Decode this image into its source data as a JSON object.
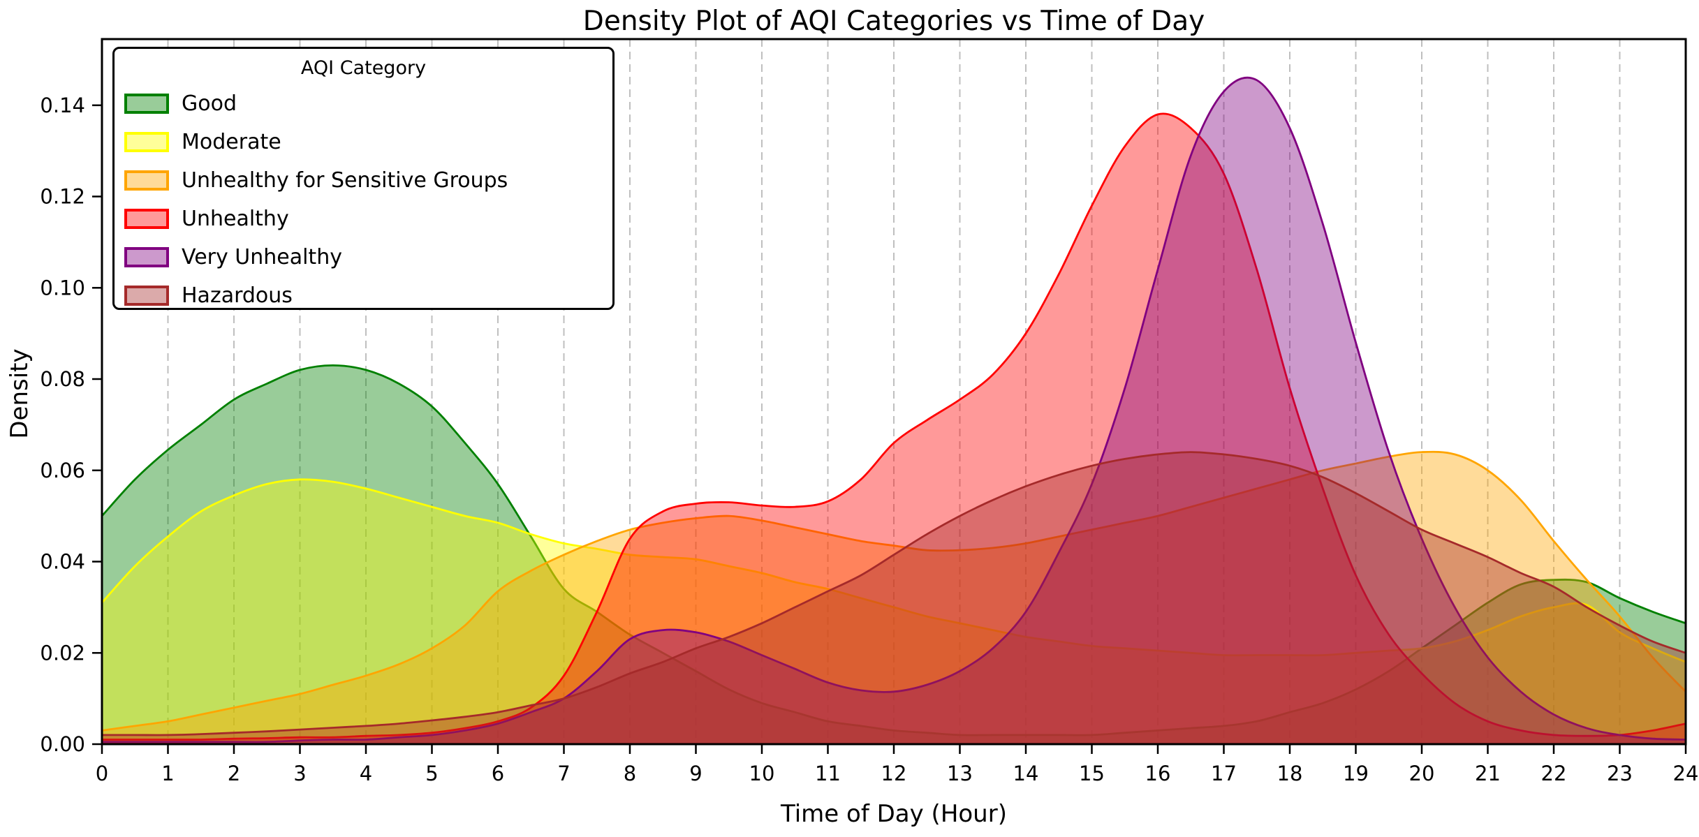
{
  "chart_data": {
    "type": "area",
    "title": "Density Plot of AQI Categories vs Time of Day",
    "xlabel": "Time of Day (Hour)",
    "ylabel": "Density",
    "legend_title": "AQI Category",
    "legend_position": "upper left",
    "grid": "vertical dashed gridlines at every hour, no horizontal gridlines",
    "xlim": [
      0,
      24
    ],
    "ylim": [
      0,
      0.1545
    ],
    "x_ticks": [
      0,
      1,
      2,
      3,
      4,
      5,
      6,
      7,
      8,
      9,
      10,
      11,
      12,
      13,
      14,
      15,
      16,
      17,
      18,
      19,
      20,
      21,
      22,
      23,
      24
    ],
    "y_ticks": [
      0.0,
      0.02,
      0.04,
      0.06,
      0.08,
      0.1,
      0.12,
      0.14
    ],
    "y_tick_labels": [
      "0.00",
      "0.02",
      "0.04",
      "0.06",
      "0.08",
      "0.10",
      "0.12",
      "0.14"
    ],
    "x_start": 0,
    "x_step": 0.5,
    "series": [
      {
        "name": "Good",
        "color": "#008000",
        "fill_opacity": 0.4,
        "values": [
          0.05,
          0.058,
          0.0645,
          0.07,
          0.0755,
          0.079,
          0.082,
          0.083,
          0.082,
          0.079,
          0.074,
          0.066,
          0.057,
          0.0455,
          0.034,
          0.029,
          0.024,
          0.02,
          0.016,
          0.012,
          0.009,
          0.007,
          0.005,
          0.004,
          0.003,
          0.0025,
          0.002,
          0.002,
          0.002,
          0.002,
          0.002,
          0.0025,
          0.003,
          0.0035,
          0.004,
          0.005,
          0.007,
          0.009,
          0.012,
          0.016,
          0.021,
          0.026,
          0.031,
          0.035,
          0.036,
          0.0355,
          0.032,
          0.029,
          0.0265
        ]
      },
      {
        "name": "Moderate",
        "color": "#ffff00",
        "fill_opacity": 0.4,
        "values": [
          0.031,
          0.039,
          0.0455,
          0.051,
          0.0545,
          0.057,
          0.058,
          0.0575,
          0.056,
          0.054,
          0.052,
          0.05,
          0.0485,
          0.046,
          0.044,
          0.0428,
          0.0415,
          0.041,
          0.0405,
          0.039,
          0.0375,
          0.0355,
          0.034,
          0.032,
          0.03,
          0.028,
          0.0265,
          0.025,
          0.0235,
          0.0225,
          0.0215,
          0.021,
          0.0205,
          0.02,
          0.0195,
          0.0195,
          0.0195,
          0.0195,
          0.02,
          0.0205,
          0.021,
          0.0225,
          0.025,
          0.028,
          0.03,
          0.0305,
          0.0245,
          0.021,
          0.018
        ]
      },
      {
        "name": "Unhealthy for Sensitive Groups",
        "color": "#ffa500",
        "fill_opacity": 0.4,
        "values": [
          0.003,
          0.004,
          0.005,
          0.0065,
          0.008,
          0.0095,
          0.011,
          0.013,
          0.015,
          0.0175,
          0.021,
          0.026,
          0.0335,
          0.038,
          0.0415,
          0.0445,
          0.047,
          0.0485,
          0.0495,
          0.05,
          0.049,
          0.0475,
          0.046,
          0.0445,
          0.0435,
          0.0425,
          0.0425,
          0.043,
          0.044,
          0.0455,
          0.047,
          0.0485,
          0.05,
          0.052,
          0.054,
          0.056,
          0.058,
          0.06,
          0.0615,
          0.063,
          0.064,
          0.0635,
          0.06,
          0.0535,
          0.0445,
          0.036,
          0.028,
          0.019,
          0.0115
        ]
      },
      {
        "name": "Unhealthy",
        "color": "#ff0000",
        "fill_opacity": 0.4,
        "values": [
          0.001,
          0.001,
          0.001,
          0.001,
          0.0012,
          0.0013,
          0.0015,
          0.0015,
          0.0018,
          0.002,
          0.0025,
          0.0035,
          0.005,
          0.008,
          0.015,
          0.029,
          0.045,
          0.051,
          0.0527,
          0.053,
          0.0523,
          0.052,
          0.0532,
          0.058,
          0.066,
          0.071,
          0.0755,
          0.081,
          0.09,
          0.103,
          0.118,
          0.131,
          0.138,
          0.135,
          0.125,
          0.104,
          0.078,
          0.056,
          0.037,
          0.024,
          0.0155,
          0.009,
          0.005,
          0.003,
          0.002,
          0.0018,
          0.002,
          0.003,
          0.0045
        ]
      },
      {
        "name": "Very Unhealthy",
        "color": "#800080",
        "fill_opacity": 0.4,
        "values": [
          0.0005,
          0.0005,
          0.0005,
          0.0005,
          0.0005,
          0.0005,
          0.0008,
          0.001,
          0.001,
          0.0015,
          0.002,
          0.003,
          0.0045,
          0.007,
          0.01,
          0.016,
          0.023,
          0.025,
          0.0245,
          0.0225,
          0.0195,
          0.0165,
          0.0135,
          0.0118,
          0.0115,
          0.013,
          0.016,
          0.021,
          0.029,
          0.042,
          0.057,
          0.078,
          0.104,
          0.129,
          0.143,
          0.1455,
          0.135,
          0.114,
          0.088,
          0.064,
          0.045,
          0.03,
          0.019,
          0.0115,
          0.0065,
          0.0035,
          0.002,
          0.0012,
          0.001
        ]
      },
      {
        "name": "Hazardous",
        "color": "#a52a2a",
        "fill_opacity": 0.4,
        "values": [
          0.002,
          0.002,
          0.002,
          0.0022,
          0.0025,
          0.0028,
          0.0032,
          0.0036,
          0.004,
          0.0045,
          0.0052,
          0.006,
          0.007,
          0.0085,
          0.01,
          0.0125,
          0.0155,
          0.018,
          0.021,
          0.0235,
          0.0265,
          0.03,
          0.0335,
          0.037,
          0.0415,
          0.046,
          0.05,
          0.0535,
          0.0565,
          0.059,
          0.061,
          0.0625,
          0.0635,
          0.064,
          0.0635,
          0.0625,
          0.061,
          0.0585,
          0.055,
          0.051,
          0.047,
          0.044,
          0.041,
          0.0375,
          0.0345,
          0.03,
          0.026,
          0.0225,
          0.02
        ]
      }
    ]
  }
}
